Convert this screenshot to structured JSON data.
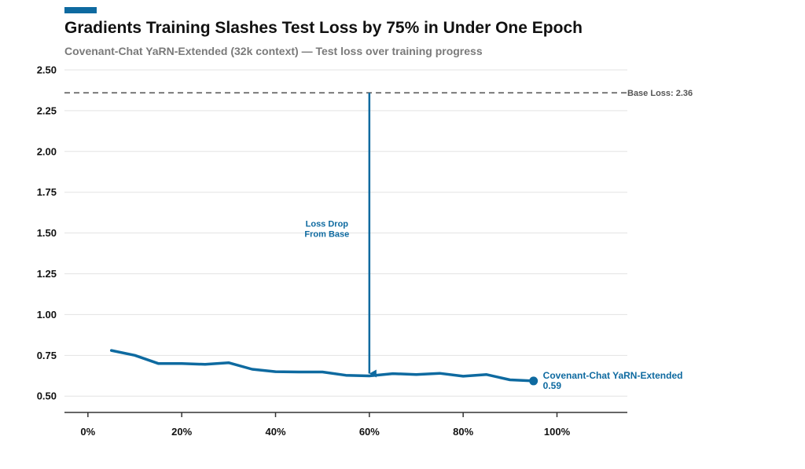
{
  "header": {
    "title": "Gradients Training Slashes Test Loss by 75% in Under One Epoch",
    "subtitle": "Covenant-Chat YaRN-Extended (32k context) — Test loss over training progress"
  },
  "colors": {
    "accent": "#0e6aa0",
    "baseline": "#7a7a7a",
    "grid": "#e3e3e3",
    "axis": "#333333"
  },
  "chart_data": {
    "type": "line",
    "x_tick_labels": [
      "0%",
      "20%",
      "40%",
      "60%",
      "80%",
      "100%"
    ],
    "x_ticks": [
      0,
      20,
      40,
      60,
      80,
      100
    ],
    "xlim": [
      -5,
      115
    ],
    "y_tick_labels": [
      "0.50",
      "0.75",
      "1.00",
      "1.25",
      "1.50",
      "1.75",
      "2.00",
      "2.25",
      "2.50"
    ],
    "y_ticks": [
      0.5,
      0.75,
      1.0,
      1.25,
      1.5,
      1.75,
      2.0,
      2.25,
      2.5
    ],
    "ylim": [
      0.4,
      2.5
    ],
    "grid": "horizontal",
    "series": [
      {
        "name": "Covenant-Chat YaRN-Extended",
        "color": "#0e6aa0",
        "x": [
          5,
          10,
          15,
          20,
          25,
          30,
          35,
          40,
          45,
          50,
          55,
          60,
          65,
          70,
          75,
          80,
          85,
          90,
          95
        ],
        "y": [
          0.78,
          0.75,
          0.7,
          0.7,
          0.695,
          0.705,
          0.665,
          0.65,
          0.648,
          0.648,
          0.628,
          0.624,
          0.638,
          0.632,
          0.64,
          0.622,
          0.632,
          0.6,
          0.593
        ]
      }
    ],
    "end_label": {
      "name": "Covenant-Chat YaRN-Extended",
      "value": "0.59",
      "x": 95,
      "y": 0.593
    },
    "baseline": {
      "label": "Base Loss: 2.36",
      "value": 2.36
    },
    "annotation": {
      "line1": "Loss Drop",
      "line2": "From Base",
      "x": 60,
      "from": 2.36,
      "to": 0.624
    }
  }
}
